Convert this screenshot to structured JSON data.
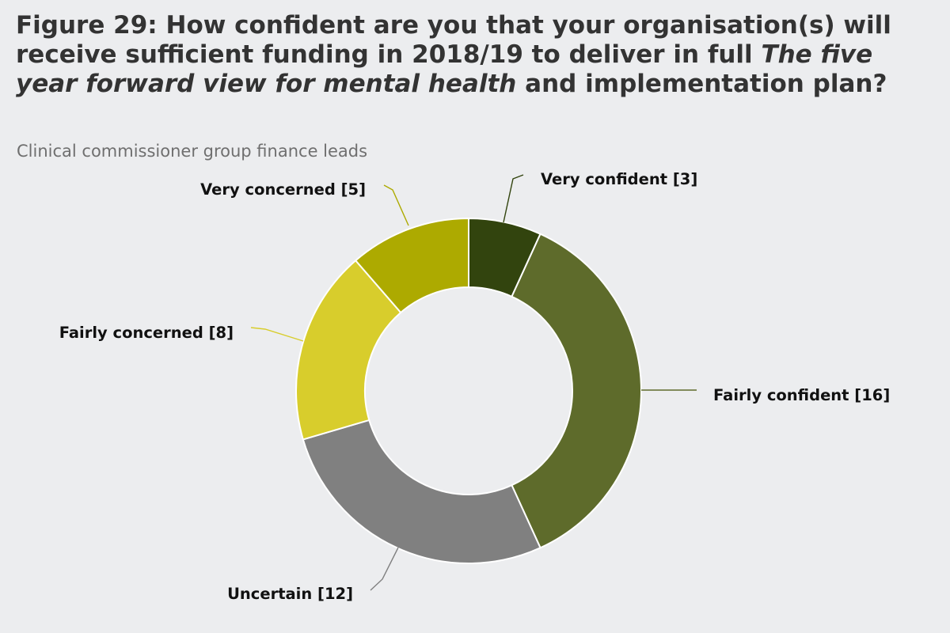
{
  "figure": {
    "title_pre": "Figure 29: How confident are you that your organisation(s) will receive sufficient funding in 2018/19 to deliver in full ",
    "title_italic": "The five year forward view for mental health",
    "title_post": " and implementation plan?",
    "subtitle": "Clinical commissioner group finance leads"
  },
  "chart_data": {
    "type": "pie",
    "variant": "donut",
    "title": "Figure 29: How confident are you that your organisation(s) will receive sufficient funding in 2018/19 to deliver in full The five year forward view for mental health and implementation plan?",
    "subtitle": "Clinical commissioner group finance leads",
    "slices": [
      {
        "label": "Very confident",
        "value": 3,
        "color": "#32440E",
        "display": "Very confident [3]"
      },
      {
        "label": "Fairly confident",
        "value": 16,
        "color": "#5E6B2B",
        "display": "Fairly confident [16]"
      },
      {
        "label": "Uncertain",
        "value": 12,
        "color": "#808080",
        "display": "Uncertain [12]"
      },
      {
        "label": "Fairly concerned",
        "value": 8,
        "color": "#D8CD2C",
        "display": "Fairly concerned [8]"
      },
      {
        "label": "Very concerned",
        "value": 5,
        "color": "#ADAA00",
        "display": "Very concerned [5]"
      }
    ],
    "legend": "none",
    "start_angle": "12 o'clock, clockwise"
  }
}
